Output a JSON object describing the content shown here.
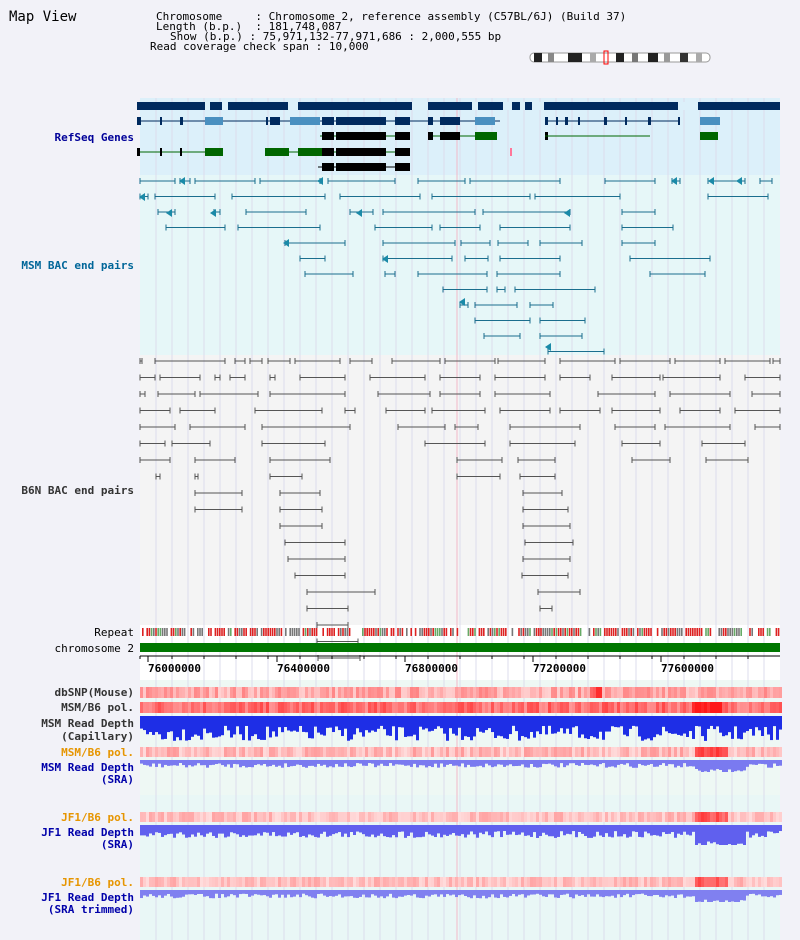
{
  "page": {
    "title": "Map View"
  },
  "header": {
    "chromosome_label": "Chromosome",
    "chromosome_value": "Chromosome 2, reference assembly (C57BL/6J) (Build 37)",
    "length_label": "Length (b.p.)",
    "length_value": "181,748,087",
    "show_label": "Show (b.p.)",
    "show_value": "75,971,132-77,971,686 : 2,000,555 bp",
    "span_label": "Read coverage check span",
    "span_value": "10,000"
  },
  "tracks": {
    "refseq": {
      "label": "RefSeq Genes",
      "color": "#000099"
    },
    "msm_bac": {
      "label": "MSM BAC end pairs",
      "color": "#006699"
    },
    "b6n_bac": {
      "label": "B6N BAC end pairs",
      "color": "#333333"
    },
    "repeat": {
      "label": "Repeat",
      "color": "#000000"
    },
    "chromosome": {
      "label": "chromosome 2",
      "color": "#000000",
      "bar_color": "#007700"
    },
    "dbsnp": {
      "label": "dbSNP(Mouse)",
      "color": "#333333"
    },
    "msm_b6_pol_1": {
      "label": "MSM/B6 pol.",
      "color": "#333333"
    },
    "msm_depth_cap": {
      "label_1": "MSM Read Depth",
      "label_2": "(Capillary)",
      "color": "#333333"
    },
    "msm_b6_pol_2": {
      "label": "MSM/B6 pol.",
      "color": "#e69500"
    },
    "msm_depth_sra": {
      "label_1": "MSM Read Depth",
      "label_2": "(SRA)",
      "color": "#0000aa"
    },
    "jf1_b6_pol_1": {
      "label": "JF1/B6 pol.",
      "color": "#e69500"
    },
    "jf1_depth_sra": {
      "label_1": "JF1 Read Depth",
      "label_2": "(SRA)",
      "color": "#0000aa"
    },
    "jf1_b6_pol_2": {
      "label": "JF1/B6 pol.",
      "color": "#e69500"
    },
    "jf1_depth_trim": {
      "label_1": "JF1 Read Depth",
      "label_2": "(SRA trimmed)",
      "color": "#0000aa"
    }
  },
  "axis": {
    "ticks": [
      "76000000",
      "76400000",
      "76800000",
      "77200000",
      "77600000"
    ]
  }
}
